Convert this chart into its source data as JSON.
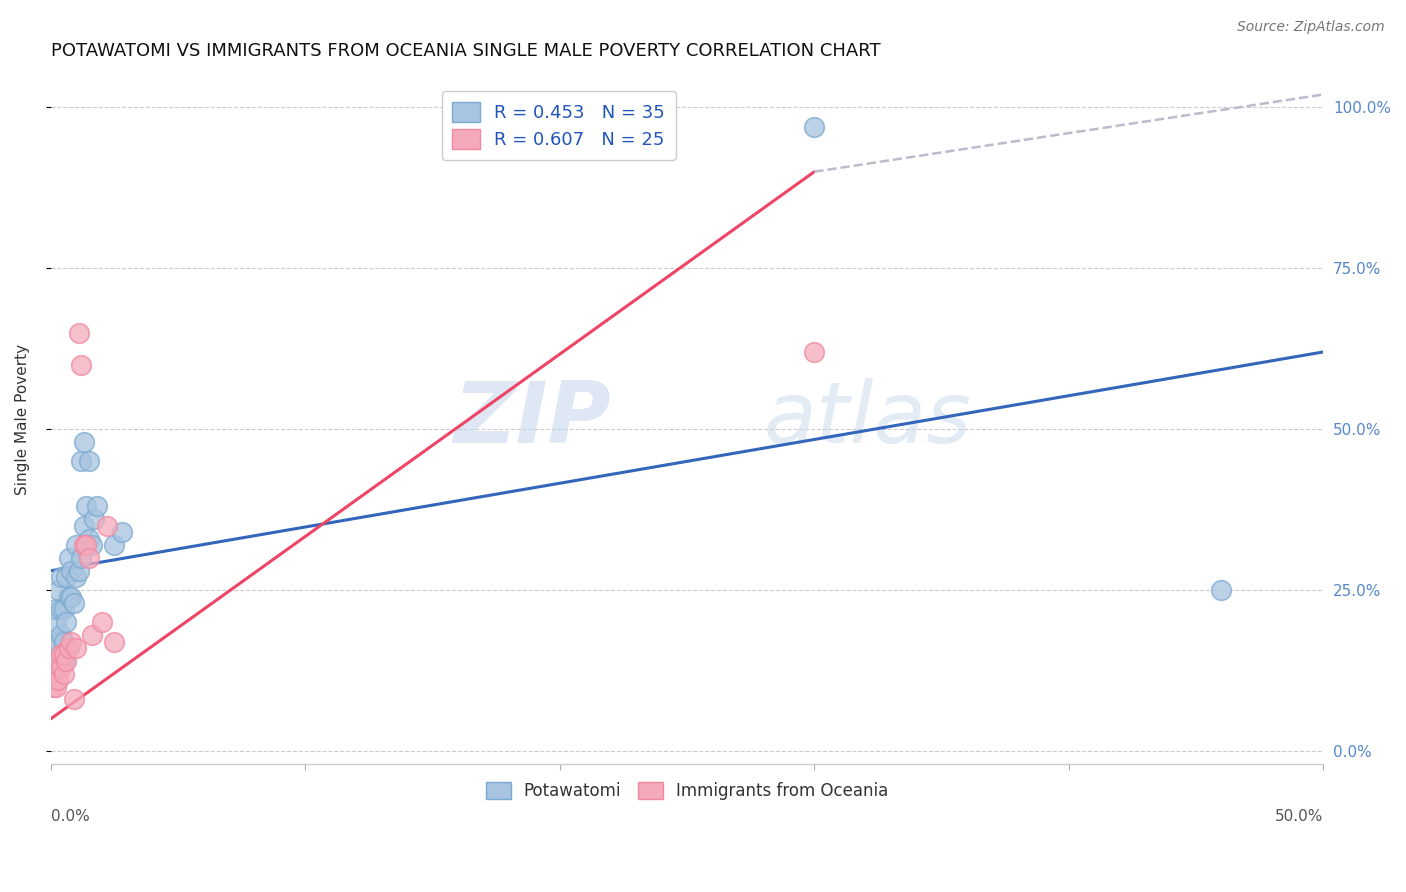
{
  "title": "POTAWATOMI VS IMMIGRANTS FROM OCEANIA SINGLE MALE POVERTY CORRELATION CHART",
  "source": "Source: ZipAtlas.com",
  "ylabel": "Single Male Poverty",
  "ylabel_right_ticks": [
    "0.0%",
    "25.0%",
    "50.0%",
    "75.0%",
    "100.0%"
  ],
  "ylabel_right_vals": [
    0.0,
    0.25,
    0.5,
    0.75,
    1.0
  ],
  "watermark_zip": "ZIP",
  "watermark_atlas": "atlas",
  "legend1_label": "R = 0.453   N = 35",
  "legend2_label": "R = 0.607   N = 25",
  "blue_color": "#A8C4E0",
  "pink_color": "#F4AABB",
  "blue_edge": "#7AAAD0",
  "pink_edge": "#F088A0",
  "trend_blue": "#3366BB",
  "trend_pink": "#EE4466",
  "trend_gray": "#BBBBCC",
  "xlim": [
    0.0,
    0.5
  ],
  "ylim": [
    -0.02,
    1.05
  ],
  "blue_x": [
    0.001,
    0.002,
    0.002,
    0.003,
    0.003,
    0.004,
    0.004,
    0.004,
    0.005,
    0.005,
    0.005,
    0.006,
    0.006,
    0.007,
    0.007,
    0.008,
    0.008,
    0.009,
    0.01,
    0.01,
    0.011,
    0.012,
    0.012,
    0.013,
    0.013,
    0.014,
    0.015,
    0.015,
    0.016,
    0.017,
    0.018,
    0.025,
    0.028,
    0.3,
    0.46
  ],
  "blue_y": [
    0.16,
    0.2,
    0.22,
    0.17,
    0.25,
    0.18,
    0.22,
    0.27,
    0.14,
    0.17,
    0.22,
    0.2,
    0.27,
    0.24,
    0.3,
    0.24,
    0.28,
    0.23,
    0.27,
    0.32,
    0.28,
    0.3,
    0.45,
    0.35,
    0.48,
    0.38,
    0.33,
    0.45,
    0.32,
    0.36,
    0.38,
    0.32,
    0.34,
    0.97,
    0.25
  ],
  "pink_x": [
    0.001,
    0.001,
    0.002,
    0.002,
    0.003,
    0.003,
    0.004,
    0.004,
    0.005,
    0.005,
    0.006,
    0.007,
    0.008,
    0.009,
    0.01,
    0.011,
    0.012,
    0.013,
    0.014,
    0.015,
    0.016,
    0.02,
    0.022,
    0.025,
    0.3
  ],
  "pink_y": [
    0.1,
    0.12,
    0.1,
    0.13,
    0.11,
    0.14,
    0.13,
    0.15,
    0.12,
    0.15,
    0.14,
    0.16,
    0.17,
    0.08,
    0.16,
    0.65,
    0.6,
    0.32,
    0.32,
    0.3,
    0.18,
    0.2,
    0.35,
    0.17,
    0.62
  ],
  "blue_trend_x": [
    0.0,
    0.5
  ],
  "blue_trend_y": [
    0.28,
    0.62
  ],
  "pink_trend_x": [
    0.0,
    0.3
  ],
  "pink_trend_y": [
    0.05,
    0.9
  ],
  "gray_trend_x": [
    0.3,
    0.5
  ],
  "gray_trend_y": [
    0.9,
    1.02
  ]
}
